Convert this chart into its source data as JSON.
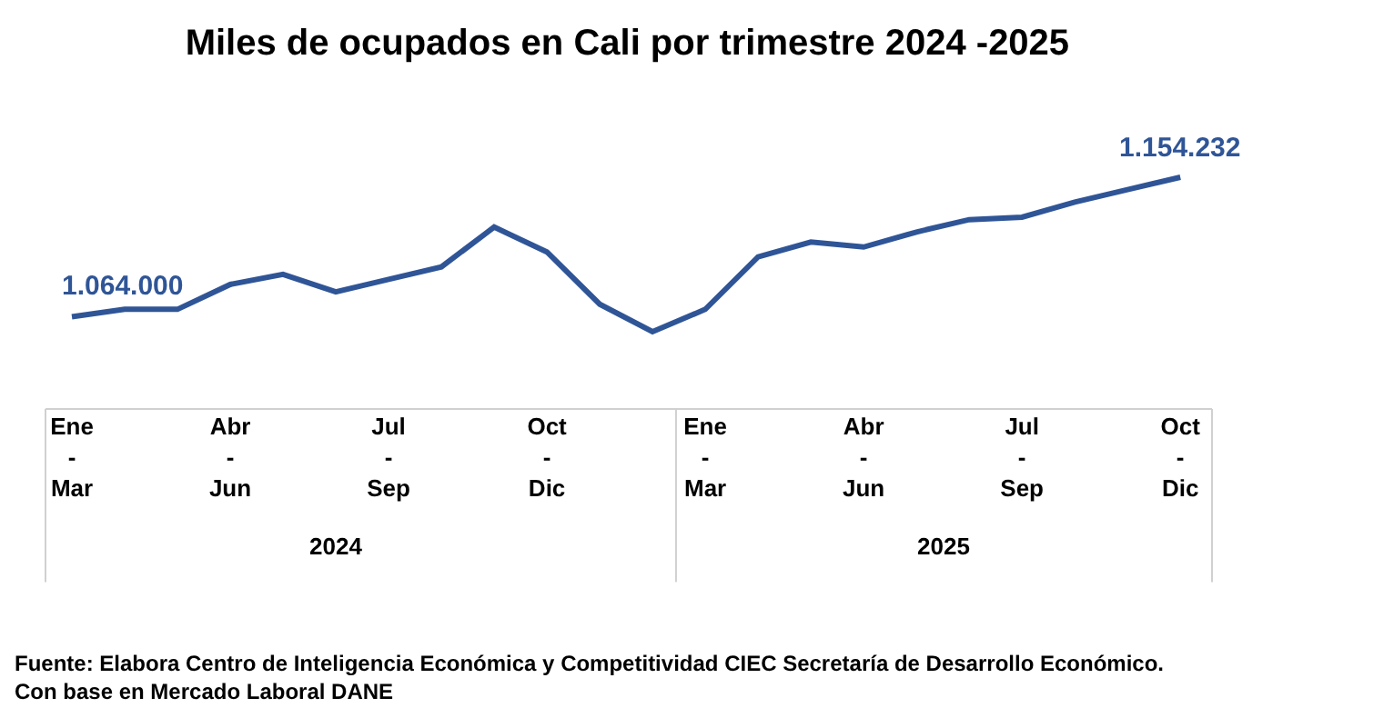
{
  "chart_data": {
    "type": "line",
    "title": "Miles de ocupados en Cali por trimestre 2024 -2025",
    "categories": [
      "Ene - Mar",
      null,
      null,
      "Abr - Jun",
      null,
      null,
      "Jul - Sep",
      null,
      null,
      "Oct - Dic",
      null,
      null,
      "Ene - Mar",
      null,
      null,
      "Abr - Jun",
      null,
      null,
      "Jul - Sep",
      null,
      null,
      "Oct - Dic"
    ],
    "series": [
      {
        "color": "#2f5597",
        "values": [
          1064000,
          1068800,
          1068800,
          1084900,
          1091400,
          1080100,
          1088200,
          1096200,
          1122000,
          1105900,
          1072100,
          1054300,
          1068800,
          1102700,
          1112300,
          1109100,
          1118800,
          1126800,
          1128400,
          1138100,
          1146200,
          1154232
        ],
        "value_labels": [
          "1.064.000",
          null,
          null,
          null,
          null,
          null,
          null,
          null,
          null,
          null,
          null,
          null,
          null,
          null,
          null,
          null,
          null,
          null,
          null,
          null,
          null,
          "1.154.232"
        ]
      }
    ],
    "grid": false,
    "marker": "none",
    "line_style": "solid",
    "annotations": [
      "2024",
      "2025",
      "Fuente: Elabora Centro de Inteligencia Económica y Competitividad CIEC Secretaría de Desarrollo Económico.\nCon base en Mercado Laboral DANE"
    ]
  }
}
